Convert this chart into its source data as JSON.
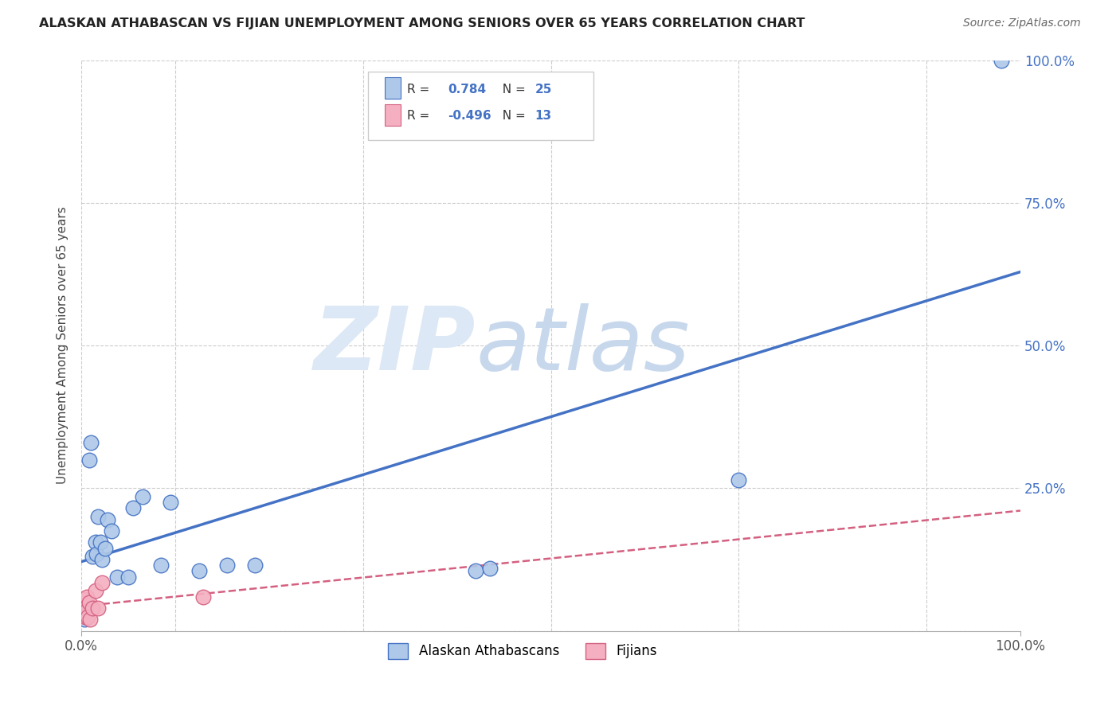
{
  "title": "ALASKAN ATHABASCAN VS FIJIAN UNEMPLOYMENT AMONG SENIORS OVER 65 YEARS CORRELATION CHART",
  "source": "Source: ZipAtlas.com",
  "ylabel": "Unemployment Among Seniors over 65 years",
  "xlim": [
    0,
    1.0
  ],
  "ylim": [
    0,
    1.0
  ],
  "ytick_positions": [
    0.0,
    0.25,
    0.5,
    0.75,
    1.0
  ],
  "right_ytick_labels": [
    "25.0%",
    "50.0%",
    "75.0%",
    "100.0%"
  ],
  "right_ytick_positions": [
    0.25,
    0.5,
    0.75,
    1.0
  ],
  "athabascan_R": 0.784,
  "athabascan_N": 25,
  "fijian_R": -0.496,
  "fijian_N": 13,
  "athabascan_color": "#adc8e8",
  "athabascan_line_color": "#4472c4",
  "fijian_color": "#f4afc0",
  "fijian_line_color": "#d46080",
  "watermark_zip": "ZIP",
  "watermark_atlas": "atlas",
  "watermark_color": "#dce8f5",
  "athabascan_x": [
    0.003,
    0.008,
    0.01,
    0.012,
    0.015,
    0.016,
    0.018,
    0.02,
    0.022,
    0.025,
    0.028,
    0.032,
    0.038,
    0.05,
    0.055,
    0.065,
    0.085,
    0.095,
    0.125,
    0.155,
    0.185,
    0.42,
    0.435,
    0.7,
    0.98
  ],
  "athabascan_y": [
    0.02,
    0.3,
    0.33,
    0.13,
    0.155,
    0.135,
    0.2,
    0.155,
    0.125,
    0.145,
    0.195,
    0.175,
    0.095,
    0.095,
    0.215,
    0.235,
    0.115,
    0.225,
    0.105,
    0.115,
    0.115,
    0.105,
    0.11,
    0.265,
    1.0
  ],
  "fijian_x": [
    0.002,
    0.003,
    0.004,
    0.005,
    0.006,
    0.007,
    0.008,
    0.009,
    0.012,
    0.015,
    0.018,
    0.022,
    0.13
  ],
  "fijian_y": [
    0.055,
    0.04,
    0.025,
    0.035,
    0.06,
    0.025,
    0.05,
    0.02,
    0.04,
    0.07,
    0.04,
    0.085,
    0.06
  ],
  "background_color": "#ffffff",
  "grid_color": "#cccccc",
  "legend_R_color": "#4472c4",
  "legend_text_color": "#333333"
}
